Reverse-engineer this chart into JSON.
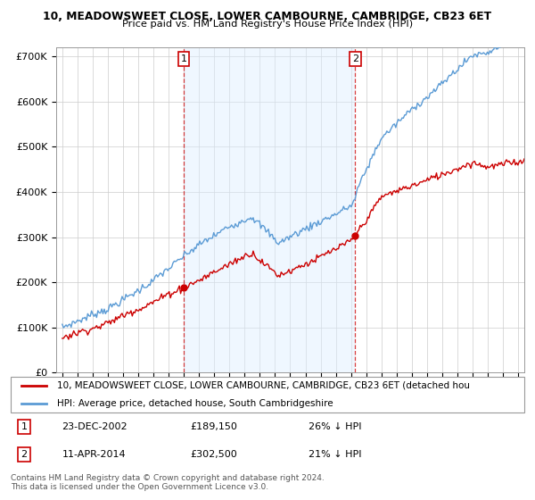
{
  "title1": "10, MEADOWSWEET CLOSE, LOWER CAMBOURNE, CAMBRIDGE, CB23 6ET",
  "title2": "Price paid vs. HM Land Registry's House Price Index (HPI)",
  "yticks": [
    0,
    100000,
    200000,
    300000,
    400000,
    500000,
    600000,
    700000
  ],
  "ytick_labels": [
    "£0",
    "£100K",
    "£200K",
    "£300K",
    "£400K",
    "£500K",
    "£600K",
    "£700K"
  ],
  "ylim_max": 720000,
  "xlim_start": 1994.6,
  "xlim_end": 2025.4,
  "sale1_date": 2002.98,
  "sale1_price": 189150,
  "sale2_date": 2014.27,
  "sale2_price": 302500,
  "legend_line1": "10, MEADOWSWEET CLOSE, LOWER CAMBOURNE, CAMBRIDGE, CB23 6ET (detached hou",
  "legend_line2": "HPI: Average price, detached house, South Cambridgeshire",
  "ann1_date": "23-DEC-2002",
  "ann1_price": "£189,150",
  "ann1_hpi": "26% ↓ HPI",
  "ann2_date": "11-APR-2014",
  "ann2_price": "£302,500",
  "ann2_hpi": "21% ↓ HPI",
  "footer1": "Contains HM Land Registry data © Crown copyright and database right 2024.",
  "footer2": "This data is licensed under the Open Government Licence v3.0.",
  "red_color": "#cc0000",
  "blue_color": "#5b9bd5",
  "shade_color": "#ddeeff",
  "grid_color": "#cccccc",
  "shade_alpha": 0.45
}
